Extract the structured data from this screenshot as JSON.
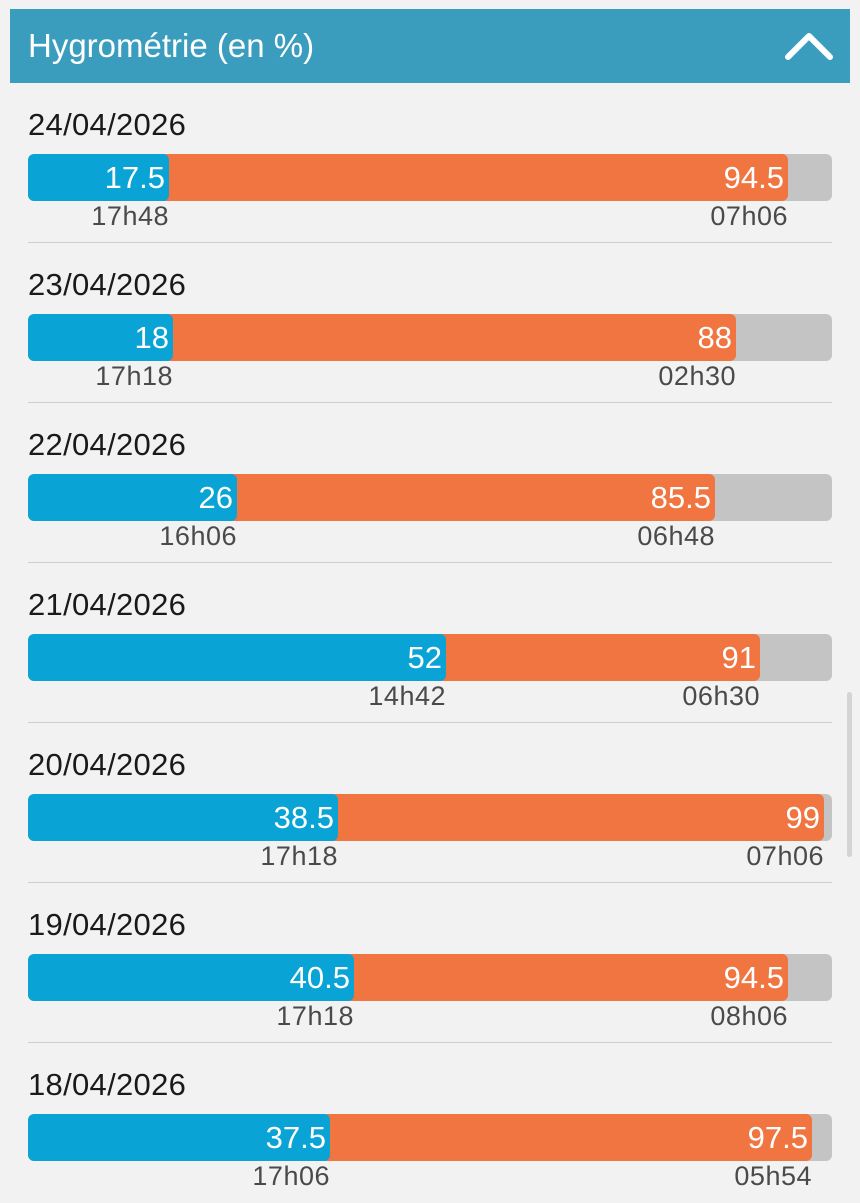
{
  "header": {
    "title": "Hygrométrie (en %)",
    "collapse_icon": "chevron-up-icon"
  },
  "colors": {
    "header_bg": "#3a9dbd",
    "min_bar": "#09a3d5",
    "max_bar": "#f07540",
    "track": "#c4c4c4"
  },
  "scale": {
    "min": 0,
    "max": 100,
    "unit": "%"
  },
  "days": [
    {
      "date": "24/04/2026",
      "min": 17.5,
      "min_label": "17.5",
      "min_time": "17h48",
      "max": 94.5,
      "max_label": "94.5",
      "max_time": "07h06"
    },
    {
      "date": "23/04/2026",
      "min": 18,
      "min_label": "18",
      "min_time": "17h18",
      "max": 88,
      "max_label": "88",
      "max_time": "02h30"
    },
    {
      "date": "22/04/2026",
      "min": 26,
      "min_label": "26",
      "min_time": "16h06",
      "max": 85.5,
      "max_label": "85.5",
      "max_time": "06h48"
    },
    {
      "date": "21/04/2026",
      "min": 52,
      "min_label": "52",
      "min_time": "14h42",
      "max": 91,
      "max_label": "91",
      "max_time": "06h30"
    },
    {
      "date": "20/04/2026",
      "min": 38.5,
      "min_label": "38.5",
      "min_time": "17h18",
      "max": 99,
      "max_label": "99",
      "max_time": "07h06"
    },
    {
      "date": "19/04/2026",
      "min": 40.5,
      "min_label": "40.5",
      "min_time": "17h18",
      "max": 94.5,
      "max_label": "94.5",
      "max_time": "08h06"
    },
    {
      "date": "18/04/2026",
      "min": 37.5,
      "min_label": "37.5",
      "min_time": "17h06",
      "max": 97.5,
      "max_label": "97.5",
      "max_time": "05h54"
    }
  ]
}
